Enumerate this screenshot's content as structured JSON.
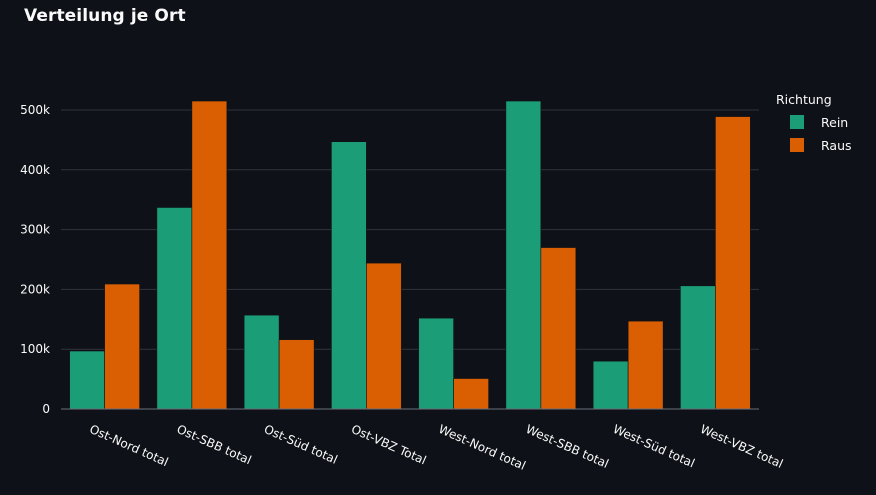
{
  "colors": {
    "background": "#0e1117",
    "text": "#fafafa",
    "grid": "#31333f",
    "rein": "#1b9e77",
    "raus": "#d95f02"
  },
  "chart_data": {
    "type": "bar",
    "title": "Verteilung je Ort",
    "categories": [
      "Ost-Nord total",
      "Ost-SBB total",
      "Ost-Süd total",
      "Ost-VBZ Total",
      "West-Nord total",
      "West-SBB total",
      "West-Süd total",
      "West-VBZ total"
    ],
    "series": [
      {
        "name": "Rein",
        "color": "#1b9e77",
        "values": [
          97000,
          337000,
          157000,
          447000,
          152000,
          515000,
          80000,
          206000
        ]
      },
      {
        "name": "Raus",
        "color": "#d95f02",
        "values": [
          209000,
          515000,
          116000,
          244000,
          51000,
          270000,
          147000,
          489000
        ]
      }
    ],
    "xlabel": "",
    "ylabel": "",
    "ylim": [
      0,
      500000
    ],
    "yticks": [
      0,
      100000,
      200000,
      300000,
      400000,
      500000
    ],
    "ytick_labels": [
      "0",
      "100k",
      "200k",
      "300k",
      "400k",
      "500k"
    ],
    "grid": true,
    "legend": {
      "title": "Richtung",
      "placement": "top-right",
      "entries": [
        "Rein",
        "Raus"
      ]
    }
  }
}
